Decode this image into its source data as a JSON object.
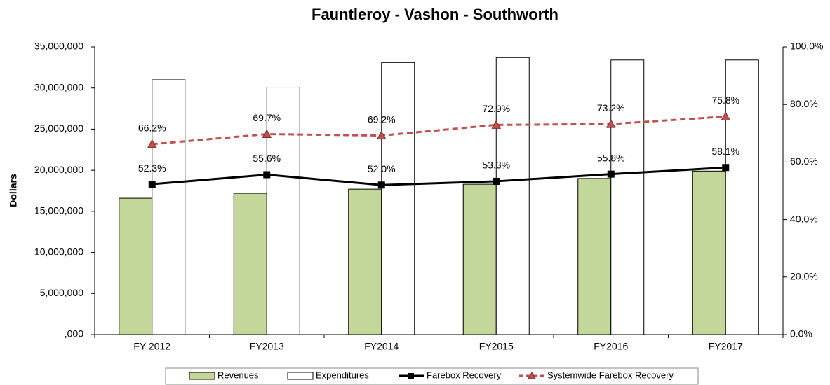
{
  "chart_data": {
    "type": "bar",
    "title": "Fauntleroy - Vashon - Southworth",
    "y_label": "Dollars",
    "categories": [
      "FY 2012",
      "FY2013",
      "FY2014",
      "FY2015",
      "FY2016",
      "FY2017"
    ],
    "series": [
      {
        "name": "Revenues",
        "type": "bar",
        "color": "#c4d79b",
        "values": [
          16600000,
          17200000,
          17700000,
          18300000,
          19000000,
          19900000
        ]
      },
      {
        "name": "Expenditures",
        "type": "bar",
        "color": "#ffffff",
        "values": [
          31000000,
          30100000,
          33100000,
          33700000,
          33400000,
          33400000
        ]
      },
      {
        "name": "Farebox Recovery",
        "type": "line",
        "axis": "y2",
        "color": "#000000",
        "marker": "square",
        "values": [
          52.3,
          55.6,
          52.0,
          53.3,
          55.8,
          58.1
        ],
        "value_labels": [
          "52.3%",
          "55.6%",
          "52.0%",
          "53.3%",
          "55.8%",
          "58.1%"
        ]
      },
      {
        "name": "Systemwide Farebox Recovery",
        "type": "line",
        "axis": "y2",
        "color": "#c0504d",
        "dashed": true,
        "marker": "triangle",
        "values": [
          66.2,
          69.7,
          69.2,
          72.9,
          73.2,
          75.8
        ],
        "value_labels": [
          "66.2%",
          "69.7%",
          "69.2%",
          "72.9%",
          "73.2%",
          "75.8%"
        ]
      }
    ],
    "ylim": [
      0,
      35000000
    ],
    "yticks": [
      {
        "value": 0,
        "label": ",000"
      },
      {
        "value": 5000000,
        "label": "5,000,000"
      },
      {
        "value": 10000000,
        "label": "10,000,000"
      },
      {
        "value": 15000000,
        "label": "15,000,000"
      },
      {
        "value": 20000000,
        "label": "20,000,000"
      },
      {
        "value": 25000000,
        "label": "25,000,000"
      },
      {
        "value": 30000000,
        "label": "30,000,000"
      },
      {
        "value": 35000000,
        "label": "35,000,000"
      }
    ],
    "y2lim": [
      0,
      100
    ],
    "y2ticks": [
      {
        "value": 0,
        "label": "0.0%"
      },
      {
        "value": 20,
        "label": "20.0%"
      },
      {
        "value": 40,
        "label": "40.0%"
      },
      {
        "value": 60,
        "label": "60.0%"
      },
      {
        "value": 80,
        "label": "80.0%"
      },
      {
        "value": 100,
        "label": "100.0%"
      }
    ],
    "legend": "bottom"
  }
}
